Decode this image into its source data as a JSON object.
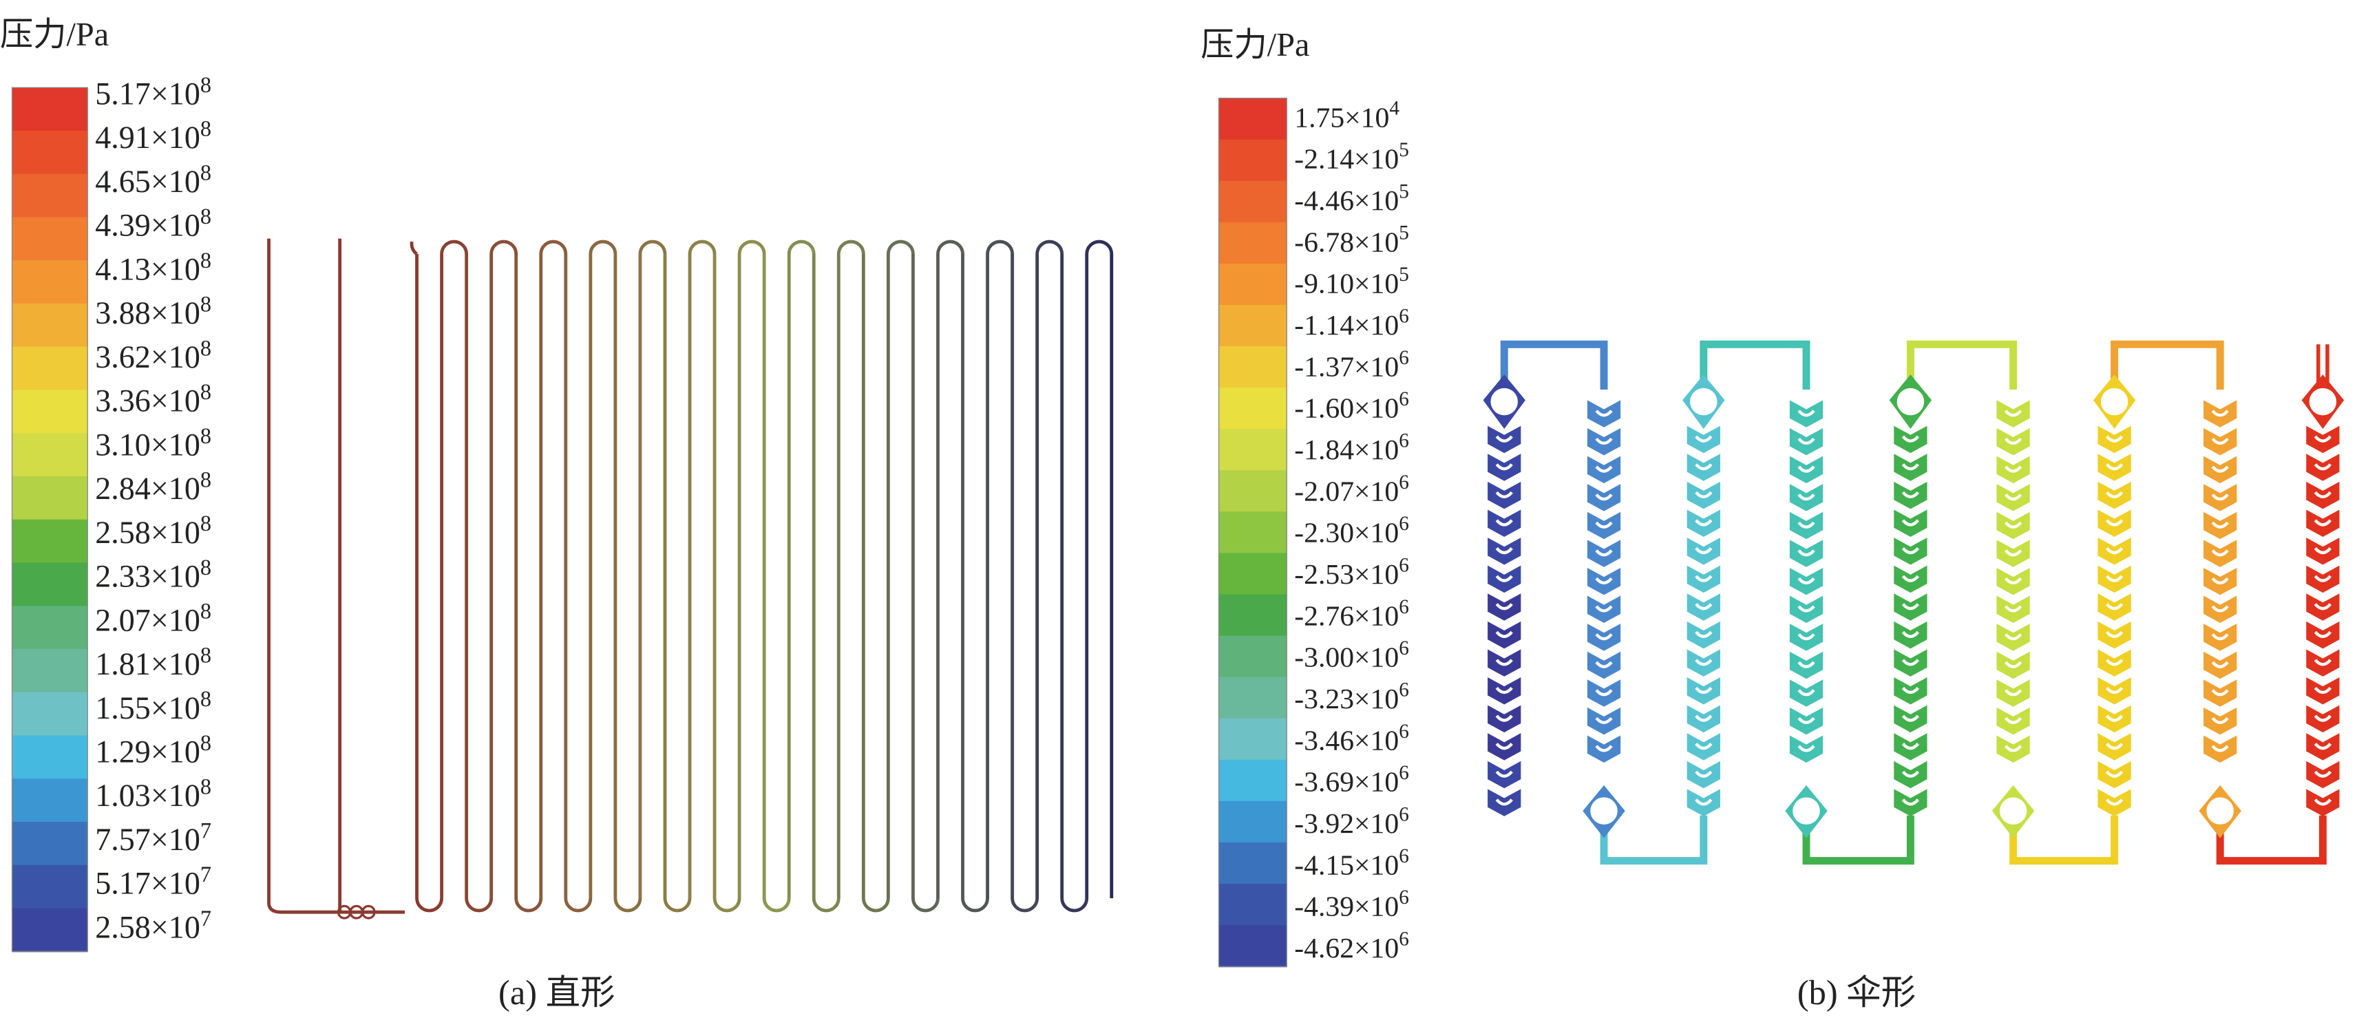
{
  "panels": [
    {
      "title": "压力/Pa",
      "caption": "(a) 直形",
      "labels": [
        {
          "base": "5.17×10",
          "exp": "8"
        },
        {
          "base": "4.91×10",
          "exp": "8"
        },
        {
          "base": "4.65×10",
          "exp": "8"
        },
        {
          "base": "4.39×10",
          "exp": "8"
        },
        {
          "base": "4.13×10",
          "exp": "8"
        },
        {
          "base": "3.88×10",
          "exp": "8"
        },
        {
          "base": "3.62×10",
          "exp": "8"
        },
        {
          "base": "3.36×10",
          "exp": "8"
        },
        {
          "base": "3.10×10",
          "exp": "8"
        },
        {
          "base": "2.84×10",
          "exp": "8"
        },
        {
          "base": "2.58×10",
          "exp": "8"
        },
        {
          "base": "2.33×10",
          "exp": "8"
        },
        {
          "base": "2.07×10",
          "exp": "8"
        },
        {
          "base": "1.81×10",
          "exp": "8"
        },
        {
          "base": "1.55×10",
          "exp": "8"
        },
        {
          "base": "1.29×10",
          "exp": "8"
        },
        {
          "base": "1.03×10",
          "exp": "8"
        },
        {
          "base": "7.57×10",
          "exp": "7"
        },
        {
          "base": "5.17×10",
          "exp": "7"
        },
        {
          "base": "2.58×10",
          "exp": "7"
        }
      ]
    },
    {
      "title": "压力/Pa",
      "caption": "(b) 伞形",
      "labels": [
        {
          "base": "1.75×10",
          "exp": "4"
        },
        {
          "base": "-2.14×10",
          "exp": "5"
        },
        {
          "base": "-4.46×10",
          "exp": "5"
        },
        {
          "base": "-6.78×10",
          "exp": "5"
        },
        {
          "base": "-9.10×10",
          "exp": "5"
        },
        {
          "base": "-1.14×10",
          "exp": "6"
        },
        {
          "base": "-1.37×10",
          "exp": "6"
        },
        {
          "base": "-1.60×10",
          "exp": "6"
        },
        {
          "base": "-1.84×10",
          "exp": "6"
        },
        {
          "base": "-2.07×10",
          "exp": "6"
        },
        {
          "base": "-2.30×10",
          "exp": "6"
        },
        {
          "base": "-2.53×10",
          "exp": "6"
        },
        {
          "base": "-2.76×10",
          "exp": "6"
        },
        {
          "base": "-3.00×10",
          "exp": "6"
        },
        {
          "base": "-3.23×10",
          "exp": "6"
        },
        {
          "base": "-3.46×10",
          "exp": "6"
        },
        {
          "base": "-3.69×10",
          "exp": "6"
        },
        {
          "base": "-3.92×10",
          "exp": "6"
        },
        {
          "base": "-4.15×10",
          "exp": "6"
        },
        {
          "base": "-4.39×10",
          "exp": "6"
        },
        {
          "base": "-4.62×10",
          "exp": "6"
        }
      ]
    }
  ]
}
